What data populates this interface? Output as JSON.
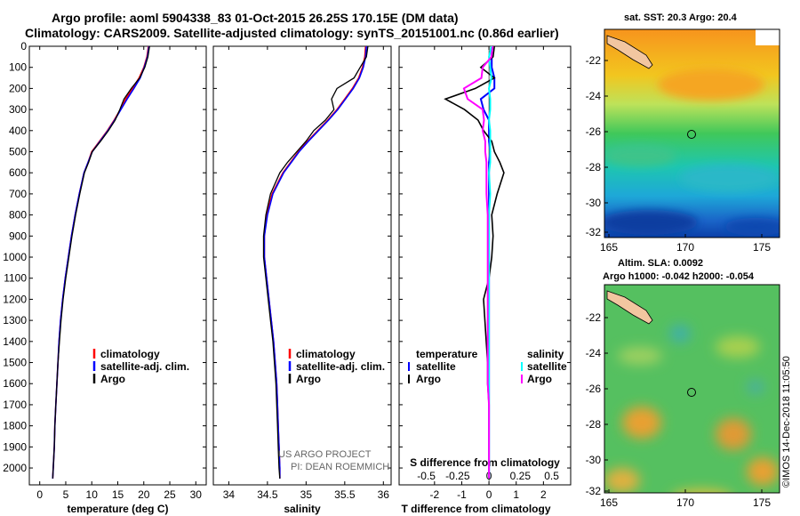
{
  "header": {
    "title_line1": "Argo profile: aoml 5904338_83 01-Oct-2015 26.25S 170.15E (DM data)",
    "title_line2": "Climatology: CARS2009. Satellite-adjusted climatology: synTS_20151001.nc (0.86d earlier)"
  },
  "maps": {
    "sst_title": "sat. SST: 20.3 Argo: 20.4",
    "sla_title1": "Altim. SLA: 0.0092",
    "sla_title2": "Argo h1000: -0.042 h2000: -0.054",
    "lon_ticks": [
      "165",
      "170",
      "175"
    ],
    "lat_ticks": [
      "-22",
      "-24",
      "-26",
      "-28",
      "-30",
      "-32"
    ],
    "profile_lon": 170.15,
    "profile_lat": -26.25
  },
  "credits": {
    "line1": "US ARGO PROJECT",
    "line2": "PI: DEAN ROEMMICH",
    "stamp": "©IMOS 14-Dec-2018 11:05:50"
  },
  "colors": {
    "climatology": "#ff0000",
    "satellite": "#0000ff",
    "argo": "#000000",
    "t_diff_satellite": "#0000ff",
    "s_diff_climatology": "#ff00ff",
    "s_diff_satellite": "#00ffff"
  },
  "chart_data": [
    {
      "type": "line",
      "panel": "temperature",
      "xlabel": "temperature (deg C)",
      "ylabel": "",
      "xlim": [
        -2,
        32
      ],
      "ylim": [
        2080,
        0
      ],
      "xticks": [
        0,
        5,
        10,
        15,
        20,
        25,
        30
      ],
      "yticks": [
        0,
        100,
        200,
        300,
        400,
        500,
        600,
        700,
        800,
        900,
        1000,
        1100,
        1200,
        1300,
        1400,
        1500,
        1600,
        1700,
        1800,
        1900,
        2000
      ],
      "ytick_labels": [
        "0",
        "100",
        "200",
        "300",
        "400",
        "500",
        "600",
        "700",
        "800",
        "900",
        "1000",
        "1100",
        "1200",
        "1300",
        "1400",
        "1500",
        "1600",
        "1700",
        "1800",
        "1900",
        "2000"
      ],
      "legend": [
        "climatology",
        "satellite-adj. clim.",
        "Argo"
      ],
      "legend_position": "lower-right",
      "depth": [
        0,
        50,
        100,
        150,
        200,
        250,
        300,
        350,
        400,
        450,
        500,
        550,
        600,
        700,
        800,
        900,
        1000,
        1100,
        1200,
        1300,
        1400,
        1500,
        1600,
        1700,
        1800,
        1900,
        2000,
        2050
      ],
      "series": [
        {
          "name": "climatology",
          "values": [
            20.9,
            20.6,
            20.0,
            19.1,
            17.8,
            16.5,
            15.5,
            14.3,
            13.0,
            11.5,
            10.0,
            9.3,
            8.5,
            7.6,
            6.8,
            6.1,
            5.5,
            4.9,
            4.4,
            4.0,
            3.7,
            3.5,
            3.3,
            3.1,
            2.9,
            2.8,
            2.6,
            2.5
          ]
        },
        {
          "name": "satellite-adj. clim.",
          "values": [
            21.0,
            20.7,
            20.1,
            19.3,
            18.1,
            16.8,
            15.6,
            14.4,
            13.1,
            11.6,
            10.1,
            9.3,
            8.5,
            7.6,
            6.8,
            6.1,
            5.5,
            4.9,
            4.4,
            4.0,
            3.7,
            3.5,
            3.3,
            3.1,
            2.9,
            2.8,
            2.6,
            2.5
          ]
        },
        {
          "name": "Argo",
          "values": [
            21.1,
            20.8,
            20.2,
            19.2,
            17.6,
            16.2,
            15.4,
            14.5,
            13.2,
            11.7,
            10.1,
            9.4,
            8.6,
            7.7,
            6.9,
            6.2,
            5.6,
            5.0,
            4.5,
            4.1,
            3.8,
            3.5,
            3.3,
            3.1,
            2.9,
            2.8,
            2.6,
            2.5
          ]
        }
      ]
    },
    {
      "type": "line",
      "panel": "salinity",
      "xlabel": "salinity",
      "ylabel": "",
      "xlim": [
        33.8,
        36.1
      ],
      "ylim": [
        2080,
        0
      ],
      "xticks": [
        34,
        34.5,
        35,
        35.5,
        36
      ],
      "xtick_labels": [
        "34",
        "34.5",
        "35",
        "35.5",
        "36"
      ],
      "legend": [
        "climatology",
        "satellite-adj. clim.",
        "Argo"
      ],
      "legend_position": "lower-right",
      "depth": [
        0,
        50,
        100,
        150,
        200,
        250,
        300,
        350,
        400,
        450,
        500,
        550,
        600,
        700,
        800,
        900,
        1000,
        1100,
        1200,
        1300,
        1400,
        1500,
        1600,
        1700,
        1800,
        1900,
        2000,
        2050
      ],
      "series": [
        {
          "name": "climatology",
          "values": [
            35.77,
            35.76,
            35.73,
            35.68,
            35.6,
            35.5,
            35.4,
            35.28,
            35.15,
            35.02,
            34.9,
            34.8,
            34.7,
            34.56,
            34.49,
            34.46,
            34.46,
            34.49,
            34.52,
            34.55,
            34.58,
            34.6,
            34.62,
            34.63,
            34.64,
            34.65,
            34.66,
            34.66
          ]
        },
        {
          "name": "satellite-adj. clim.",
          "values": [
            35.78,
            35.77,
            35.74,
            35.69,
            35.61,
            35.51,
            35.41,
            35.29,
            35.16,
            35.03,
            34.91,
            34.81,
            34.71,
            34.57,
            34.5,
            34.46,
            34.46,
            34.49,
            34.52,
            34.55,
            34.58,
            34.6,
            34.62,
            34.63,
            34.64,
            34.65,
            34.66,
            34.66
          ]
        },
        {
          "name": "Argo",
          "values": [
            35.8,
            35.78,
            35.7,
            35.62,
            35.4,
            35.33,
            35.36,
            35.25,
            35.1,
            35.0,
            34.88,
            34.76,
            34.66,
            34.54,
            34.48,
            34.45,
            34.45,
            34.48,
            34.51,
            34.54,
            34.57,
            34.59,
            34.61,
            34.62,
            34.63,
            34.64,
            34.65,
            34.66
          ]
        }
      ]
    },
    {
      "type": "line",
      "panel": "differences",
      "xlabel": "T difference from climatology",
      "xlabel_top": "S difference from climatology",
      "xlim": [
        -3.3,
        3.0
      ],
      "ylim": [
        2080,
        0
      ],
      "xticks": [
        -2,
        -1,
        0,
        1,
        2
      ],
      "xtick_labels": [
        "-2",
        "-1",
        "0",
        "1",
        "2"
      ],
      "s_xticks": [
        -0.5,
        -0.25,
        0,
        0.25,
        0.5
      ],
      "s_xtick_labels": [
        "-0.5",
        "-0.25",
        "0",
        "0.25",
        "0.5"
      ],
      "legend_t_title": "temperature",
      "legend_s_title": "salinity",
      "legend_t": [
        "satellite",
        "Argo"
      ],
      "legend_s": [
        "satellite",
        "Argo"
      ],
      "legend_position": "lower-center",
      "depth": [
        0,
        50,
        100,
        150,
        200,
        250,
        300,
        350,
        400,
        450,
        500,
        550,
        600,
        700,
        800,
        900,
        1000,
        1100,
        1200,
        1300,
        1400,
        1500,
        1600,
        1700,
        1800,
        1900,
        2000,
        2050
      ],
      "series": [
        {
          "name": "T satellite",
          "values": [
            0.1,
            0.1,
            0.1,
            0.2,
            0.2,
            -0.3,
            -0.2,
            0.0,
            0.0,
            0.0,
            0.05,
            0.0,
            0.0,
            0.0,
            0.0,
            0.0,
            0.0,
            0.0,
            0.0,
            0.0,
            0.0,
            0.0,
            0.0,
            0.0,
            0.0,
            0.0,
            0.0,
            0.0
          ]
        },
        {
          "name": "T Argo",
          "values": [
            0.2,
            0.15,
            -0.3,
            0.2,
            -0.5,
            -1.6,
            -0.9,
            -0.4,
            -0.2,
            0.1,
            0.2,
            0.4,
            0.55,
            0.3,
            0.1,
            0.15,
            0.1,
            0.0,
            -0.2,
            -0.15,
            -0.1,
            -0.05,
            -0.05,
            0.0,
            0.0,
            0.0,
            0.0,
            0.0
          ]
        },
        {
          "name": "S satellite",
          "values": [
            0.02,
            0.0,
            0.01,
            0.02,
            0.0,
            0.01,
            0.01,
            0.0,
            0.01,
            0.01,
            0.01,
            0.01,
            0.0,
            0.01,
            0.0,
            0.0,
            0.0,
            0.0,
            0.0,
            0.0,
            0.0,
            0.0,
            0.0,
            0.0,
            0.0,
            0.0,
            0.0,
            0.0
          ]
        },
        {
          "name": "S Argo",
          "values": [
            0.03,
            0.02,
            -0.05,
            -0.06,
            -0.2,
            -0.17,
            -0.05,
            -0.04,
            -0.05,
            -0.03,
            -0.03,
            -0.02,
            -0.02,
            -0.02,
            -0.01,
            -0.01,
            -0.01,
            -0.01,
            -0.01,
            -0.01,
            -0.01,
            -0.01,
            -0.01,
            0.0,
            0.0,
            0.0,
            0.0,
            0.0
          ]
        }
      ]
    }
  ]
}
